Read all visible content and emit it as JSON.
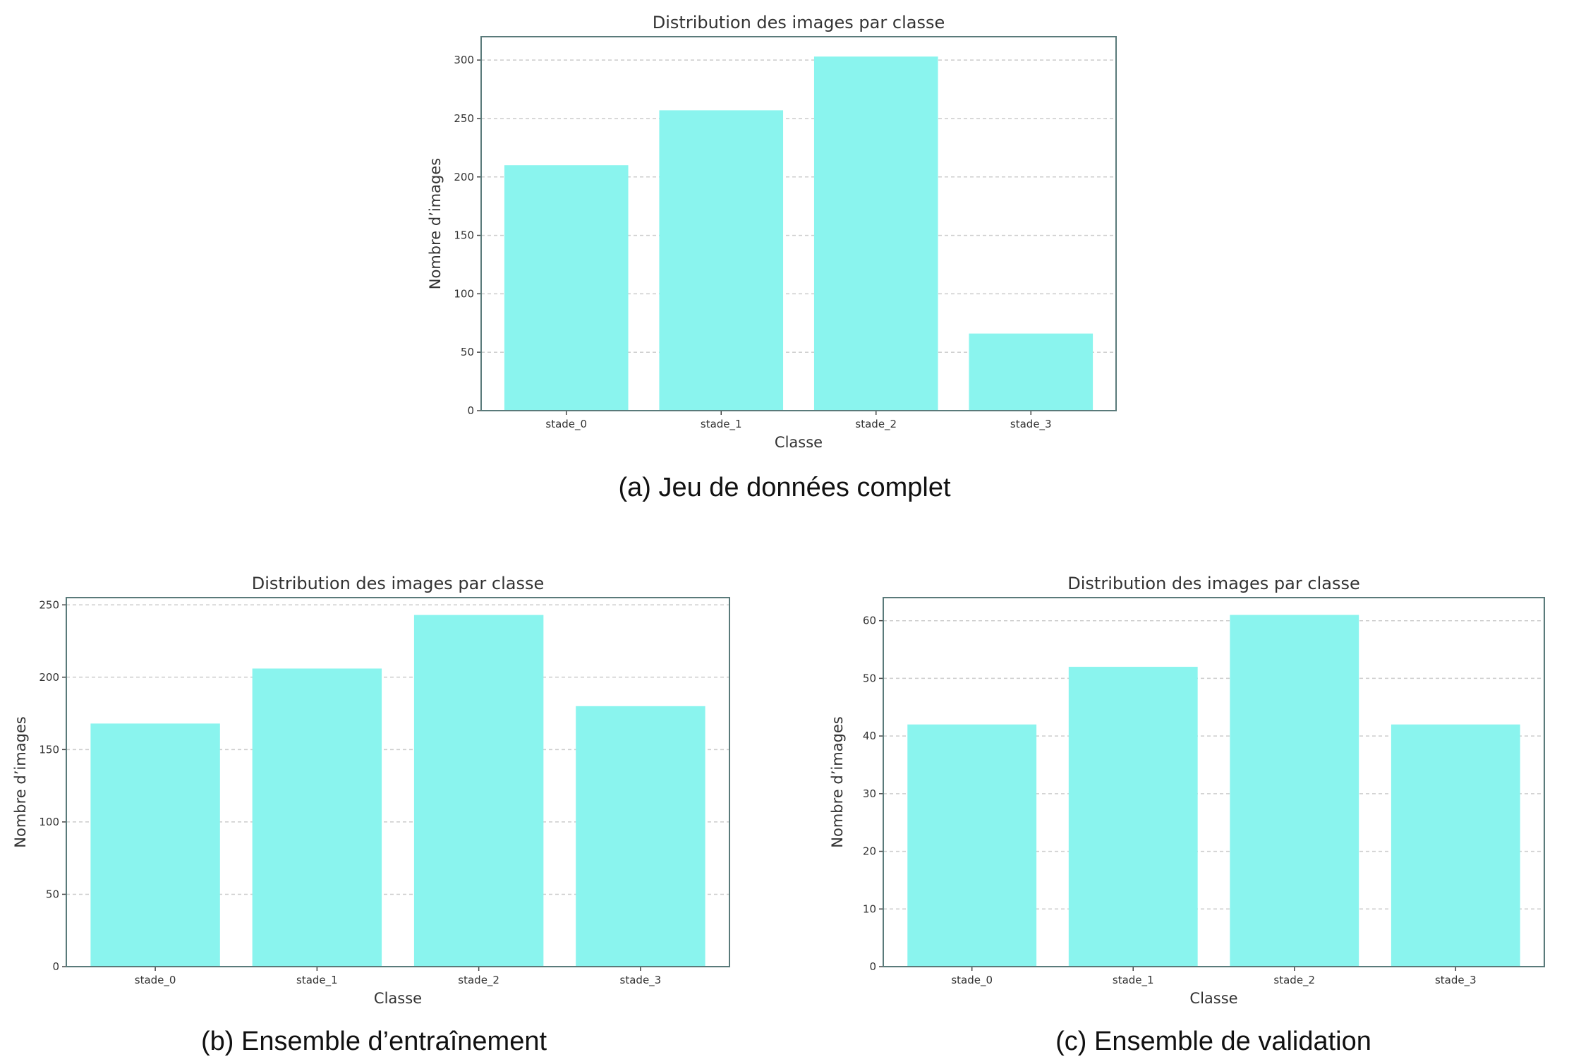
{
  "chart_data": [
    {
      "type": "bar",
      "title": "Distribution des images par classe",
      "xlabel": "Classe",
      "ylabel": "Nombre d’images",
      "categories": [
        "stade_0",
        "stade_1",
        "stade_2",
        "stade_3"
      ],
      "values": [
        210,
        257,
        303,
        66
      ],
      "ylim": [
        0,
        320
      ],
      "yticks": [
        0,
        50,
        100,
        150,
        200,
        250,
        300
      ],
      "grid": "y-dashed",
      "bar_color": "#8af4ee",
      "caption": "(a) Jeu de données complet"
    },
    {
      "type": "bar",
      "title": "Distribution des images par classe",
      "xlabel": "Classe",
      "ylabel": "Nombre d’images",
      "categories": [
        "stade_0",
        "stade_1",
        "stade_2",
        "stade_3"
      ],
      "values": [
        168,
        206,
        243,
        180
      ],
      "ylim": [
        0,
        255
      ],
      "yticks": [
        0,
        50,
        100,
        150,
        200,
        250
      ],
      "grid": "y-dashed",
      "bar_color": "#8af4ee",
      "caption": "(b) Ensemble d’entraînement"
    },
    {
      "type": "bar",
      "title": "Distribution des images par classe",
      "xlabel": "Classe",
      "ylabel": "Nombre d’images",
      "categories": [
        "stade_0",
        "stade_1",
        "stade_2",
        "stade_3"
      ],
      "values": [
        42,
        52,
        61,
        42
      ],
      "ylim": [
        0,
        64
      ],
      "yticks": [
        0,
        10,
        20,
        30,
        40,
        50,
        60
      ],
      "grid": "y-dashed",
      "bar_color": "#8af4ee",
      "caption": "(c) Ensemble de validation"
    }
  ]
}
